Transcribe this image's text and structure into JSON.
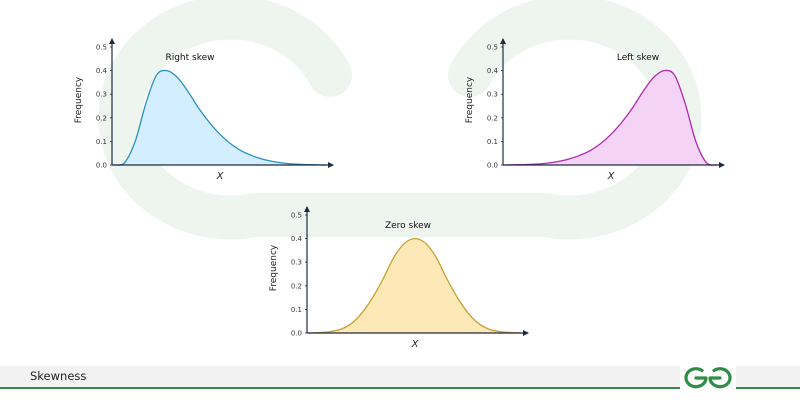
{
  "footer": {
    "title": "Skewness"
  },
  "brand_color": "#2f8d46",
  "watermark_color": "#eef5ef",
  "logo_icon": "gfg-logo-icon",
  "chart_data": [
    {
      "type": "area",
      "title": "Right skew",
      "xlabel": "X",
      "ylabel": "Frequency",
      "ylim": [
        0,
        0.5
      ],
      "yticks": [
        "0.0",
        "0.1",
        "0.2",
        "0.3",
        "0.4",
        "0.5"
      ],
      "grid": false,
      "fill": "#d3efff",
      "stroke": "#2b8fbf",
      "x": [
        0,
        0.5,
        1,
        1.5,
        2,
        2.5,
        3,
        3.5,
        4,
        4.5,
        5,
        5.5,
        6,
        6.5,
        7,
        7.5,
        8,
        8.5,
        9,
        9.5,
        10
      ],
      "y": [
        0.0,
        0.01,
        0.1,
        0.26,
        0.38,
        0.4,
        0.37,
        0.31,
        0.24,
        0.18,
        0.13,
        0.09,
        0.06,
        0.04,
        0.025,
        0.015,
        0.008,
        0.004,
        0.002,
        0.001,
        0.0
      ]
    },
    {
      "type": "area",
      "title": "Left skew",
      "xlabel": "X",
      "ylabel": "Frequency",
      "ylim": [
        0,
        0.5
      ],
      "yticks": [
        "0.0",
        "0.1",
        "0.2",
        "0.3",
        "0.4",
        "0.5"
      ],
      "grid": false,
      "fill": "#f5d3f7",
      "stroke": "#b02aae",
      "x": [
        0,
        0.5,
        1,
        1.5,
        2,
        2.5,
        3,
        3.5,
        4,
        4.5,
        5,
        5.5,
        6,
        6.5,
        7,
        7.5,
        8,
        8.5,
        9,
        9.5,
        10
      ],
      "y": [
        0.0,
        0.001,
        0.002,
        0.004,
        0.008,
        0.015,
        0.025,
        0.04,
        0.06,
        0.09,
        0.13,
        0.18,
        0.24,
        0.31,
        0.37,
        0.4,
        0.38,
        0.26,
        0.1,
        0.01,
        0.0
      ]
    },
    {
      "type": "area",
      "title": "Zero skew",
      "xlabel": "X",
      "ylabel": "Frequency",
      "ylim": [
        0,
        0.5
      ],
      "yticks": [
        "0.0",
        "0.1",
        "0.2",
        "0.3",
        "0.4",
        "0.5"
      ],
      "grid": false,
      "fill": "#fde9b8",
      "stroke": "#c9a132",
      "x": [
        0,
        0.5,
        1,
        1.5,
        2,
        2.5,
        3,
        3.5,
        4,
        4.5,
        5,
        5.5,
        6,
        6.5,
        7,
        7.5,
        8,
        8.5,
        9,
        9.5,
        10
      ],
      "y": [
        0.0,
        0.002,
        0.006,
        0.016,
        0.04,
        0.085,
        0.15,
        0.23,
        0.32,
        0.38,
        0.4,
        0.38,
        0.32,
        0.23,
        0.15,
        0.085,
        0.04,
        0.016,
        0.006,
        0.002,
        0.0
      ]
    }
  ]
}
